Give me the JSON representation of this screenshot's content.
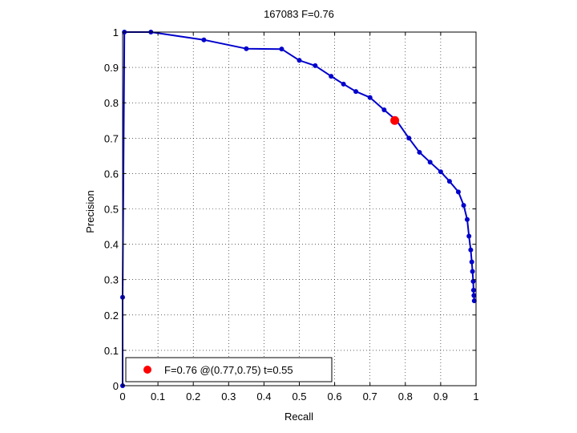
{
  "chart_data": {
    "type": "line",
    "title": "167083 F=0.76",
    "xlabel": "Recall",
    "ylabel": "Precision",
    "xlim": [
      0,
      1
    ],
    "ylim": [
      0,
      1
    ],
    "xticks": [
      0,
      0.1,
      0.2,
      0.3,
      0.4,
      0.5,
      0.6,
      0.7,
      0.8,
      0.9,
      1
    ],
    "yticks": [
      0,
      0.1,
      0.2,
      0.3,
      0.4,
      0.5,
      0.6,
      0.7,
      0.8,
      0.9,
      1
    ],
    "xtick_labels": [
      "0",
      "0.1",
      "0.2",
      "0.3",
      "0.4",
      "0.5",
      "0.6",
      "0.7",
      "0.8",
      "0.9",
      "1"
    ],
    "ytick_labels": [
      "0",
      "0.1",
      "0.2",
      "0.3",
      "0.4",
      "0.5",
      "0.6",
      "0.7",
      "0.8",
      "0.9",
      "1"
    ],
    "grid": true,
    "grid_style": "dotted",
    "series": [
      {
        "color": "#0000cc",
        "marker": "dot",
        "x": [
          0.0,
          0.0,
          0.005,
          0.08,
          0.23,
          0.35,
          0.45,
          0.5,
          0.545,
          0.59,
          0.625,
          0.66,
          0.7,
          0.74,
          0.775,
          0.81,
          0.84,
          0.87,
          0.9,
          0.925,
          0.95,
          0.965,
          0.975,
          0.98,
          0.985,
          0.988,
          0.99,
          0.992,
          0.993,
          0.994,
          0.995
        ],
        "y": [
          0.0,
          0.25,
          1.0,
          1.0,
          0.978,
          0.953,
          0.952,
          0.92,
          0.905,
          0.875,
          0.853,
          0.832,
          0.815,
          0.78,
          0.75,
          0.7,
          0.66,
          0.632,
          0.605,
          0.578,
          0.548,
          0.51,
          0.47,
          0.423,
          0.384,
          0.35,
          0.323,
          0.295,
          0.27,
          0.255,
          0.24
        ]
      }
    ],
    "highlight": {
      "x": 0.77,
      "y": 0.75,
      "color": "#ff0000"
    },
    "legend": {
      "position": "bottom-left",
      "label": "F=0.76 @(0.77,0.75) t=0.55"
    }
  }
}
